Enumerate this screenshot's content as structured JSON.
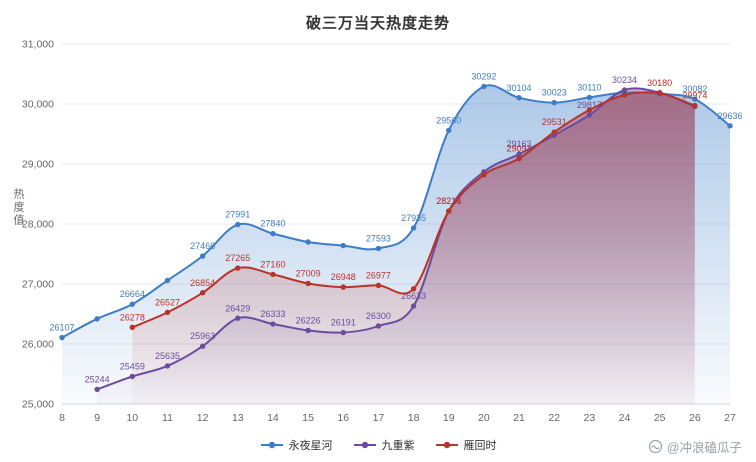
{
  "watermark": {
    "text": "@冲浪磕瓜子"
  },
  "chart_data": {
    "type": "line",
    "title": "破三万当天热度走势",
    "ylabel": "热度值",
    "x": [
      8,
      9,
      10,
      11,
      12,
      13,
      14,
      15,
      16,
      17,
      18,
      19,
      20,
      21,
      22,
      23,
      24,
      25,
      26,
      27
    ],
    "ylim": [
      25000,
      31000
    ],
    "ytick_step": 1000,
    "grid": true,
    "legend_position": "bottom",
    "series": [
      {
        "name": "永夜星河",
        "color": "#3d7dc8",
        "x_start": 8,
        "values": [
          26107,
          26420,
          26664,
          27060,
          27466,
          27991,
          27840,
          27700,
          27640,
          27593,
          27935,
          29560,
          30292,
          30104,
          30023,
          30110,
          30190,
          30170,
          30082,
          29636
        ],
        "labels": [
          26107,
          null,
          26664,
          null,
          27466,
          27991,
          27840,
          null,
          null,
          27593,
          27935,
          29560,
          30292,
          30104,
          30023,
          30110,
          null,
          null,
          30082,
          29636
        ]
      },
      {
        "name": "九重紫",
        "color": "#6b4c9f",
        "x_start": 9,
        "values": [
          25244,
          25459,
          25635,
          25963,
          26429,
          26333,
          26226,
          26191,
          26300,
          26633,
          28216,
          28870,
          29163,
          29480,
          29817,
          30234,
          30190,
          29958
        ],
        "labels": [
          25244,
          25459,
          25635,
          25963,
          26429,
          26333,
          26226,
          26191,
          26300,
          26633,
          28216,
          null,
          29163,
          null,
          29817,
          30234,
          null,
          null
        ]
      },
      {
        "name": "雁回时",
        "color": "#ba3329",
        "x_start": 10,
        "values": [
          26278,
          26527,
          26854,
          27265,
          27160,
          27009,
          26948,
          26977,
          26920,
          28214,
          28820,
          29091,
          29531,
          29900,
          30150,
          30180,
          29974
        ],
        "labels": [
          26278,
          26527,
          26854,
          27265,
          27160,
          27009,
          26948,
          26977,
          null,
          28214,
          null,
          29091,
          29531,
          null,
          null,
          30180,
          29974
        ]
      }
    ]
  }
}
